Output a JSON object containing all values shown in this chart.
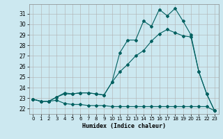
{
  "xlabel": "Humidex (Indice chaleur)",
  "background_color": "#cce8f0",
  "grid_color": "#b0b0b0",
  "line_color": "#006060",
  "xlim": [
    -0.5,
    23.5
  ],
  "ylim": [
    21.5,
    31.9
  ],
  "yticks": [
    22,
    23,
    24,
    25,
    26,
    27,
    28,
    29,
    30,
    31
  ],
  "xticks": [
    0,
    1,
    2,
    3,
    4,
    5,
    6,
    7,
    8,
    9,
    10,
    11,
    12,
    13,
    14,
    15,
    16,
    17,
    18,
    19,
    20,
    21,
    22,
    23
  ],
  "series1_x": [
    0,
    1,
    2,
    3,
    4,
    5,
    6,
    7,
    8,
    9,
    10,
    11,
    12,
    13,
    14,
    15,
    16,
    17,
    18,
    19,
    20,
    21,
    22,
    23
  ],
  "series1_y": [
    22.9,
    22.7,
    22.7,
    22.8,
    22.5,
    22.4,
    22.4,
    22.3,
    22.3,
    22.3,
    22.2,
    22.2,
    22.2,
    22.2,
    22.2,
    22.2,
    22.2,
    22.2,
    22.2,
    22.2,
    22.2,
    22.2,
    22.2,
    21.8
  ],
  "series2_x": [
    0,
    1,
    2,
    3,
    4,
    5,
    6,
    7,
    8,
    9,
    10,
    11,
    12,
    13,
    14,
    15,
    16,
    17,
    18,
    19,
    20,
    21,
    22,
    23
  ],
  "series2_y": [
    22.9,
    22.7,
    22.7,
    23.1,
    23.4,
    23.4,
    23.5,
    23.5,
    23.4,
    23.3,
    24.5,
    25.5,
    26.2,
    27.0,
    27.5,
    28.4,
    29.1,
    29.5,
    29.2,
    28.9,
    28.8,
    25.5,
    23.4,
    21.8
  ],
  "series3_x": [
    0,
    1,
    2,
    3,
    4,
    5,
    6,
    7,
    8,
    9,
    10,
    11,
    12,
    13,
    14,
    15,
    16,
    17,
    18,
    19,
    20,
    21,
    22,
    23
  ],
  "series3_y": [
    22.9,
    22.7,
    22.7,
    23.1,
    23.5,
    23.4,
    23.5,
    23.5,
    23.4,
    23.3,
    24.5,
    27.3,
    28.5,
    28.5,
    30.3,
    29.8,
    31.4,
    30.8,
    31.5,
    30.3,
    29.0,
    25.5,
    23.4,
    21.8
  ]
}
